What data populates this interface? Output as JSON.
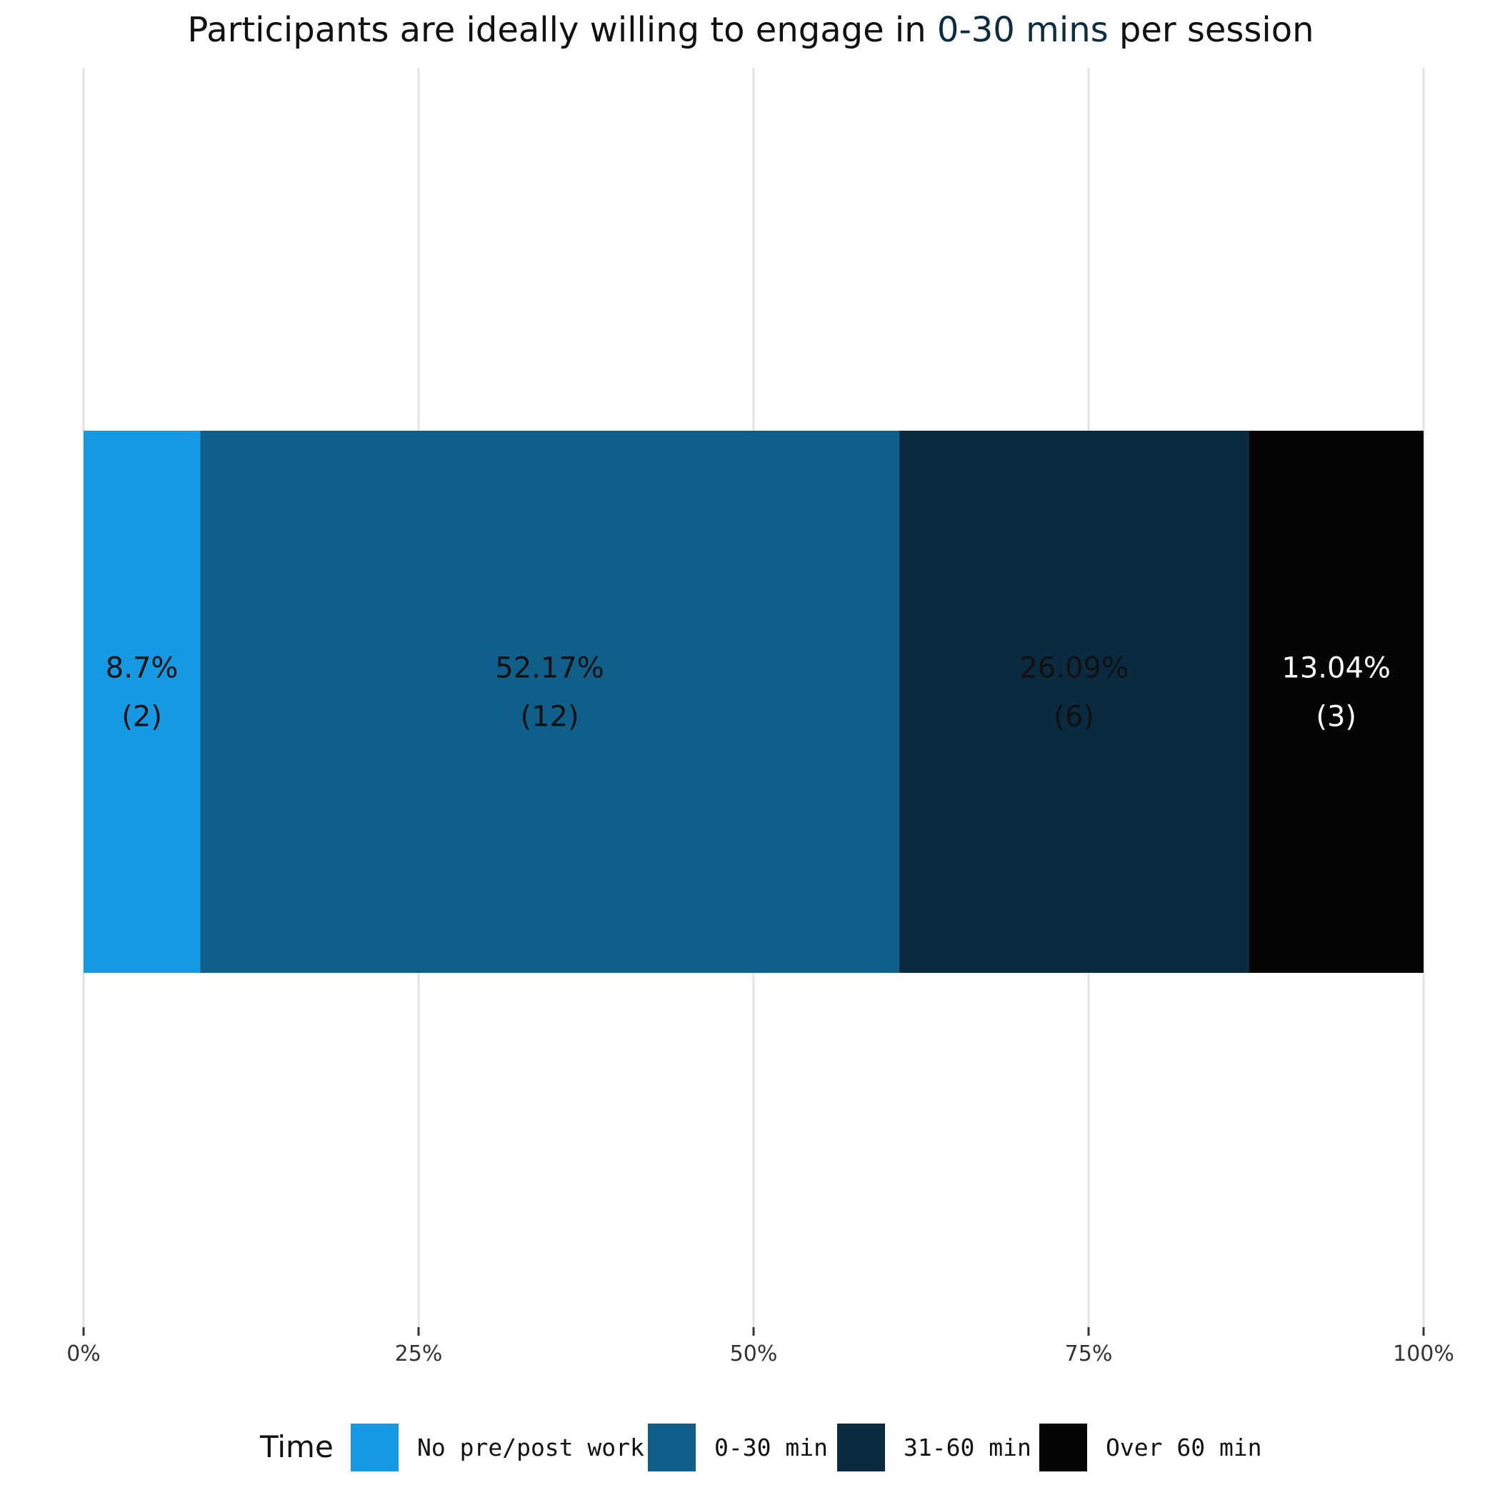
{
  "chart_data": {
    "type": "bar",
    "orientation": "horizontal-stacked-percent",
    "title": {
      "prefix": "Participants are ideally willing to engage in ",
      "highlight": "0-30 mins",
      "suffix": " per session",
      "highlight_color": "#0c2d3f"
    },
    "xlabel": "",
    "ylabel": "",
    "xlim": [
      0,
      100
    ],
    "x_ticks": [
      0,
      25,
      50,
      75,
      100
    ],
    "x_tick_labels": [
      "0%",
      "25%",
      "50%",
      "75%",
      "100%"
    ],
    "grid": true,
    "legend_title": "Time",
    "legend_position": "bottom",
    "series": [
      {
        "name": "No pre/post work",
        "value": 8.7,
        "count": 2,
        "pct_label": "8.7%",
        "count_label": "(2)",
        "color": "#1599e3",
        "label_color": "#111111"
      },
      {
        "name": "0-30 min",
        "value": 52.17,
        "count": 12,
        "pct_label": "52.17%",
        "count_label": "(12)",
        "color": "#0f5f8a",
        "label_color": "#111111"
      },
      {
        "name": "31-60 min",
        "value": 26.09,
        "count": 6,
        "pct_label": "26.09%",
        "count_label": "(6)",
        "color": "#0a2b3f",
        "label_color": "#111111"
      },
      {
        "name": "Over 60 min",
        "value": 13.04,
        "count": 3,
        "pct_label": "13.04%",
        "count_label": "(3)",
        "color": "#050505",
        "label_color": "#ffffff"
      }
    ]
  }
}
